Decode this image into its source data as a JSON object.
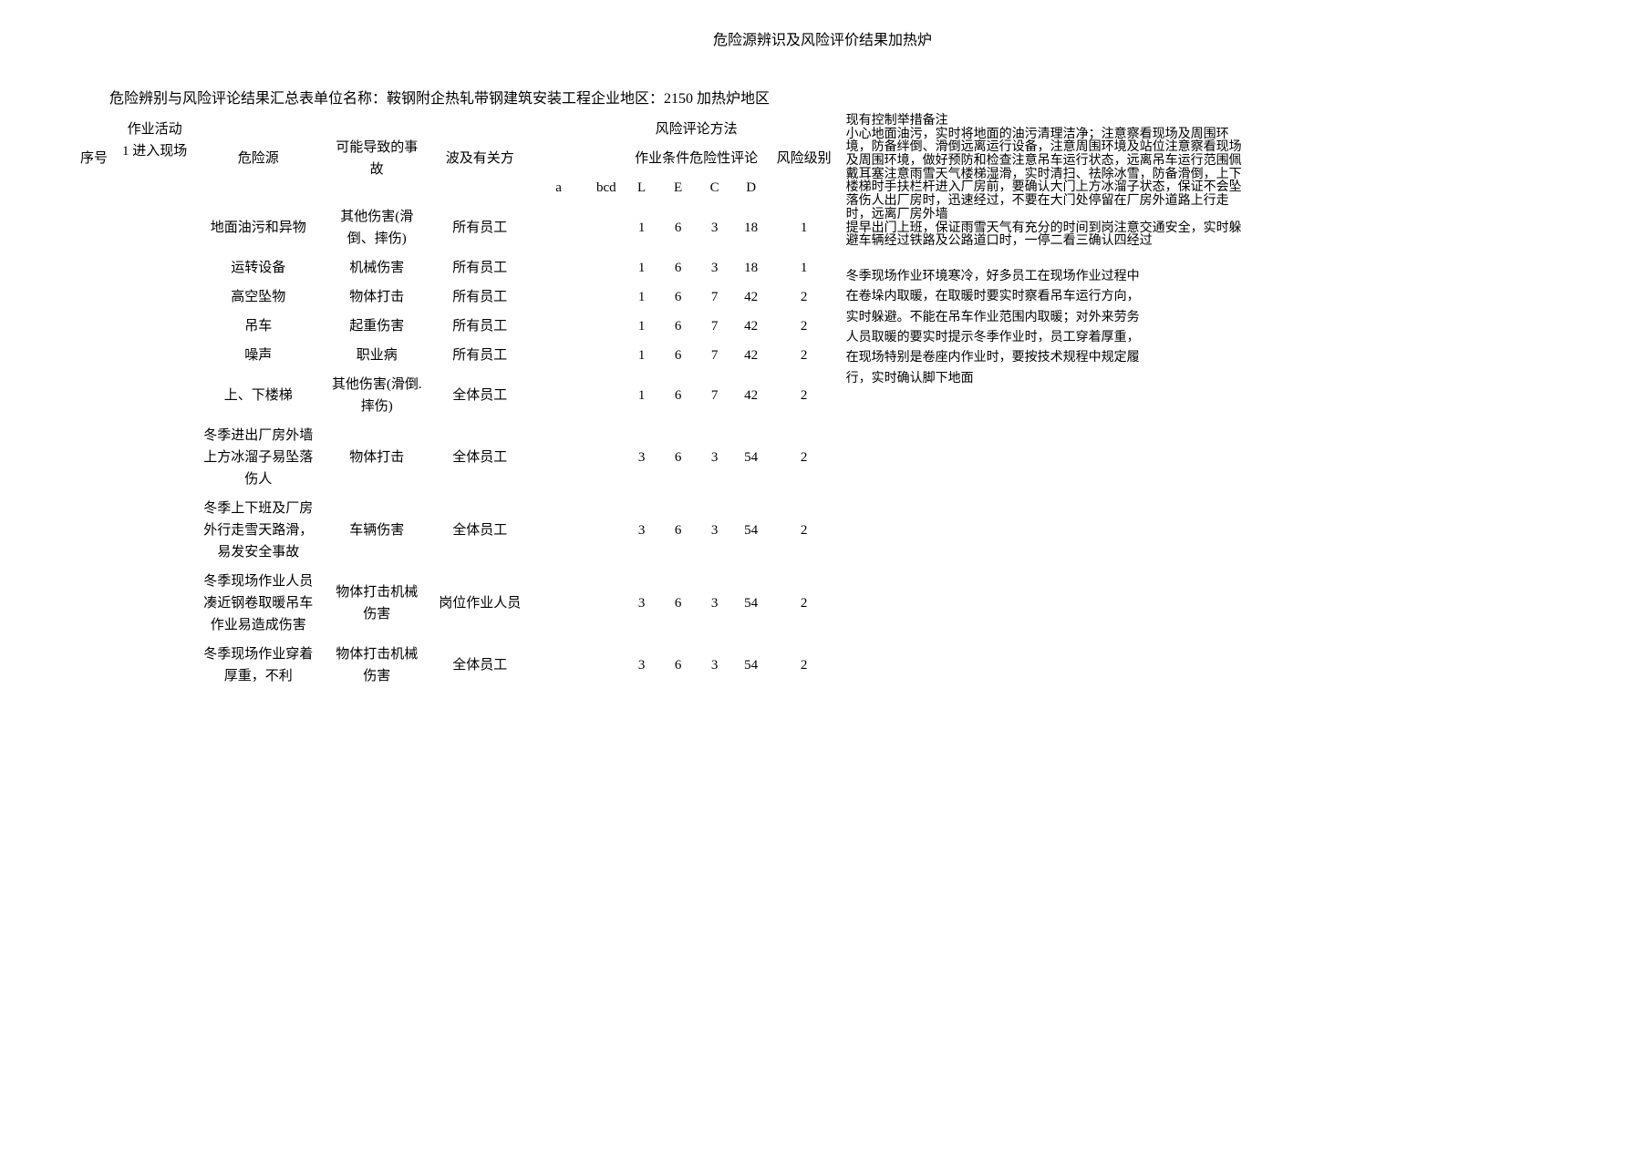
{
  "title": "危险源辨识及风险评价结果加热炉",
  "summary": "危险辨别与风险评论结果汇总表单位名称：鞍钢附企热轧带钢建筑安装工程企业地区：2150 加热炉地区",
  "headers": {
    "seq": "序号",
    "activity": "作业活动",
    "activity_value": "1 进入现场",
    "hazard": "危险源",
    "accident": "可能导致的事故",
    "involved": "波及有关方",
    "a": "a",
    "bcd": "bcd",
    "method_group": "风险评论方法",
    "cond_group": "作业条件危险性评论",
    "L": "L",
    "E": "E",
    "C": "C",
    "D": "D",
    "level": "风险级别",
    "control": "现有控制举措",
    "remark": "备注"
  },
  "rows": [
    {
      "hazard": "地面油污和异物",
      "accident": "其他伤害(滑倒、摔伤)",
      "involved": "所有员工",
      "L": "1",
      "E": "6",
      "C": "3",
      "D": "18",
      "level": "1"
    },
    {
      "hazard": "运转设备",
      "accident": "机械伤害",
      "involved": "所有员工",
      "L": "1",
      "E": "6",
      "C": "3",
      "D": "18",
      "level": "1"
    },
    {
      "hazard": "高空坠物",
      "accident": "物体打击",
      "involved": "所有员工",
      "L": "1",
      "E": "6",
      "C": "7",
      "D": "42",
      "level": "2"
    },
    {
      "hazard": "吊车",
      "accident": "起重伤害",
      "involved": "所有员工",
      "L": "1",
      "E": "6",
      "C": "7",
      "D": "42",
      "level": "2"
    },
    {
      "hazard": "噪声",
      "accident": "职业病",
      "involved": "所有员工",
      "L": "1",
      "E": "6",
      "C": "7",
      "D": "42",
      "level": "2"
    },
    {
      "hazard": "上、下楼梯",
      "accident": "其他伤害(滑倒.摔伤)",
      "involved": "全体员工",
      "L": "1",
      "E": "6",
      "C": "7",
      "D": "42",
      "level": "2"
    },
    {
      "hazard": "冬季进出厂房外墙上方冰溜子易坠落伤人",
      "accident": "物体打击",
      "involved": "全体员工",
      "L": "3",
      "E": "6",
      "C": "3",
      "D": "54",
      "level": "2"
    },
    {
      "hazard": "冬季上下班及厂房外行走雪天路滑，易发安全事故",
      "accident": "车辆伤害",
      "involved": "全体员工",
      "L": "3",
      "E": "6",
      "C": "3",
      "D": "54",
      "level": "2"
    },
    {
      "hazard": "冬季现场作业人员凑近钢卷取暖吊车作业易造成伤害",
      "accident": "物体打击机械伤害",
      "involved": "岗位作业人员",
      "L": "3",
      "E": "6",
      "C": "3",
      "D": "54",
      "level": "2"
    },
    {
      "hazard": "冬季现场作业穿着厚重，不利",
      "accident": "物体打击机械伤害",
      "involved": "全体员工",
      "L": "3",
      "E": "6",
      "C": "3",
      "D": "54",
      "level": "2"
    }
  ],
  "notes_tight": [
    "小心地面油污，实时将地面的油污清理洁净；注意察看现场及周围环",
    "境，防备绊倒、滑倒远离运行设备，注意周围环境及站位注意察看现场",
    "及周围环境，做好预防和检查注意吊车运行状态，远离吊车运行范围佩",
    "戴耳塞注意雨雪天气楼梯湿滑，实时清扫、祛除冰雪，防备滑倒，上下",
    "楼梯时手扶栏杆进入厂房前，要确认大门上方冰溜子状态，保证不会坠",
    "落伤人出厂房时，迅速经过，不要在大门处停留在厂房外道路上行走",
    "时，远离厂房外墙",
    "提早出门上班，保证雨雪天气有充分的时间到岗注意交通安全，实时躲",
    "避车辆经过铁路及公路道口时，一停二看三确认四经过"
  ],
  "notes_spaced": [
    "冬季现场作业环境寒冷，好多员工在现场作业过程中",
    "在卷垛内取暖，在取暖时要实时察看吊车运行方向，",
    "实时躲避。不能在吊车作业范围内取暖；对外来劳务",
    "人员取暖的要实时提示冬季作业时，员工穿着厚重，",
    "在现场特别是卷座内作业时，要按技术规程中规定履",
    "行，实时确认脚下地面"
  ],
  "style": {
    "background_color": "#ffffff",
    "text_color": "#000000",
    "font_family": "SimSun",
    "title_fontsize": 16,
    "body_fontsize": 15,
    "notes_fontsize": 14
  }
}
